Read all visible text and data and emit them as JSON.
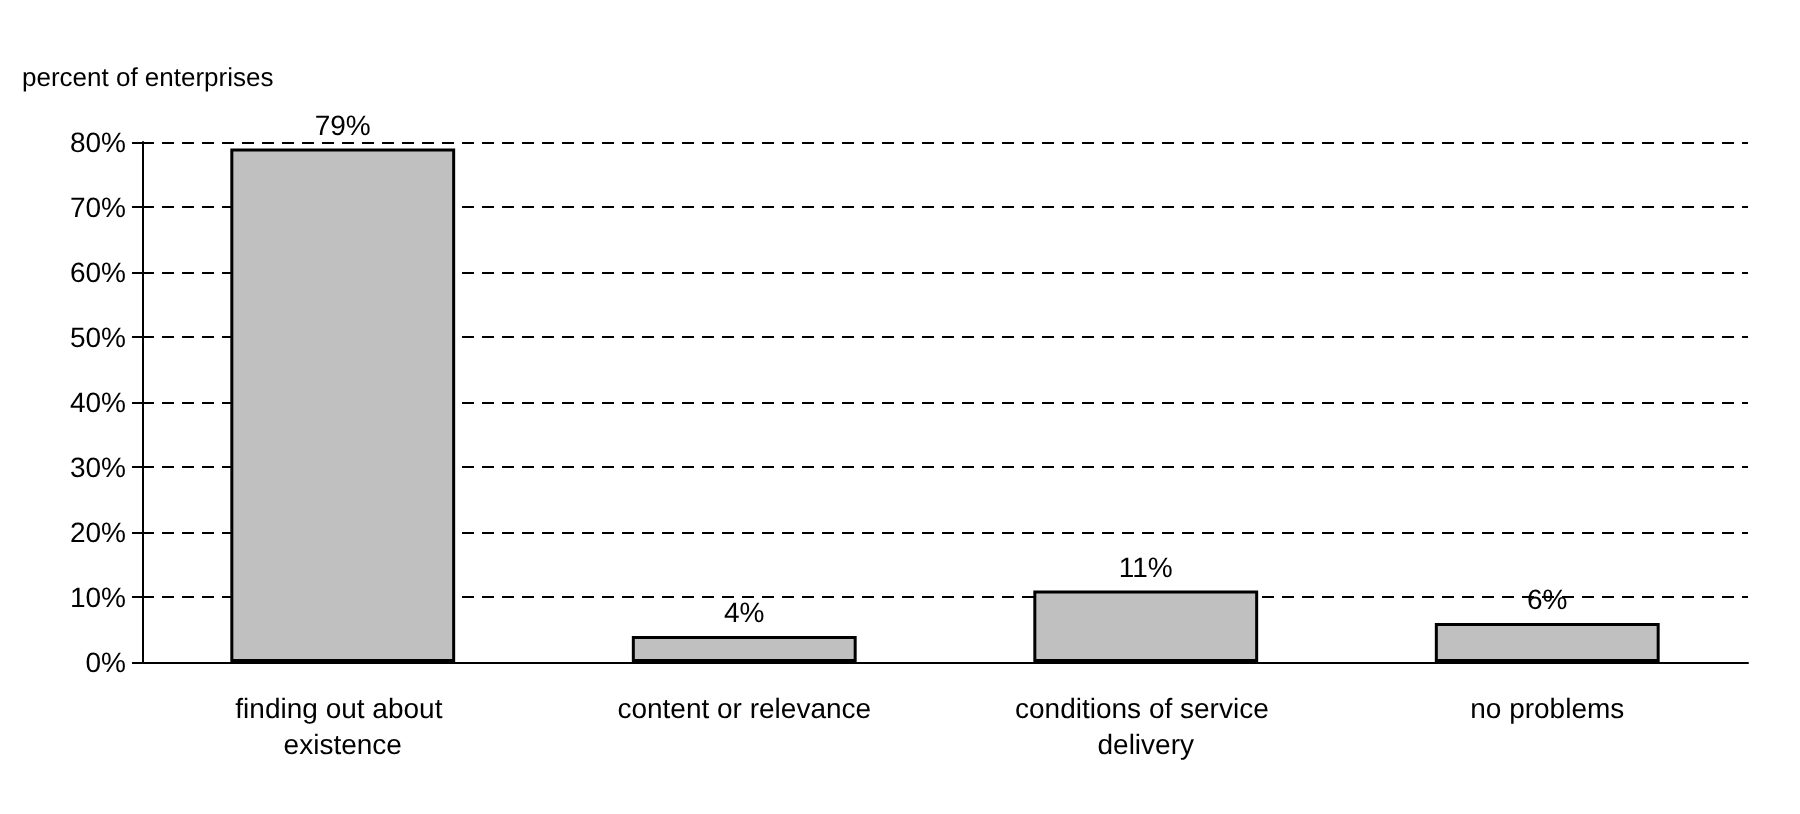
{
  "chart_data": {
    "type": "bar",
    "ylabel": "percent of enterprises",
    "categories": [
      "finding out about existence",
      "content or relevance",
      "conditions of service delivery",
      "no problems"
    ],
    "values": [
      79,
      4,
      11,
      6
    ],
    "color": "#c0c0c0",
    "value_labels": [
      "79%",
      "4%",
      "11%",
      "6%"
    ],
    "ylim": [
      0,
      80
    ],
    "yticks": [
      {
        "value": 0,
        "label": "0%"
      },
      {
        "value": 10,
        "label": "10%"
      },
      {
        "value": 20,
        "label": "20%"
      },
      {
        "value": 30,
        "label": "30%"
      },
      {
        "value": 40,
        "label": "40%"
      },
      {
        "value": 50,
        "label": "50%"
      },
      {
        "value": 60,
        "label": "60%"
      },
      {
        "value": 70,
        "label": "70%"
      },
      {
        "value": 80,
        "label": "80%"
      }
    ],
    "grid": "y"
  }
}
